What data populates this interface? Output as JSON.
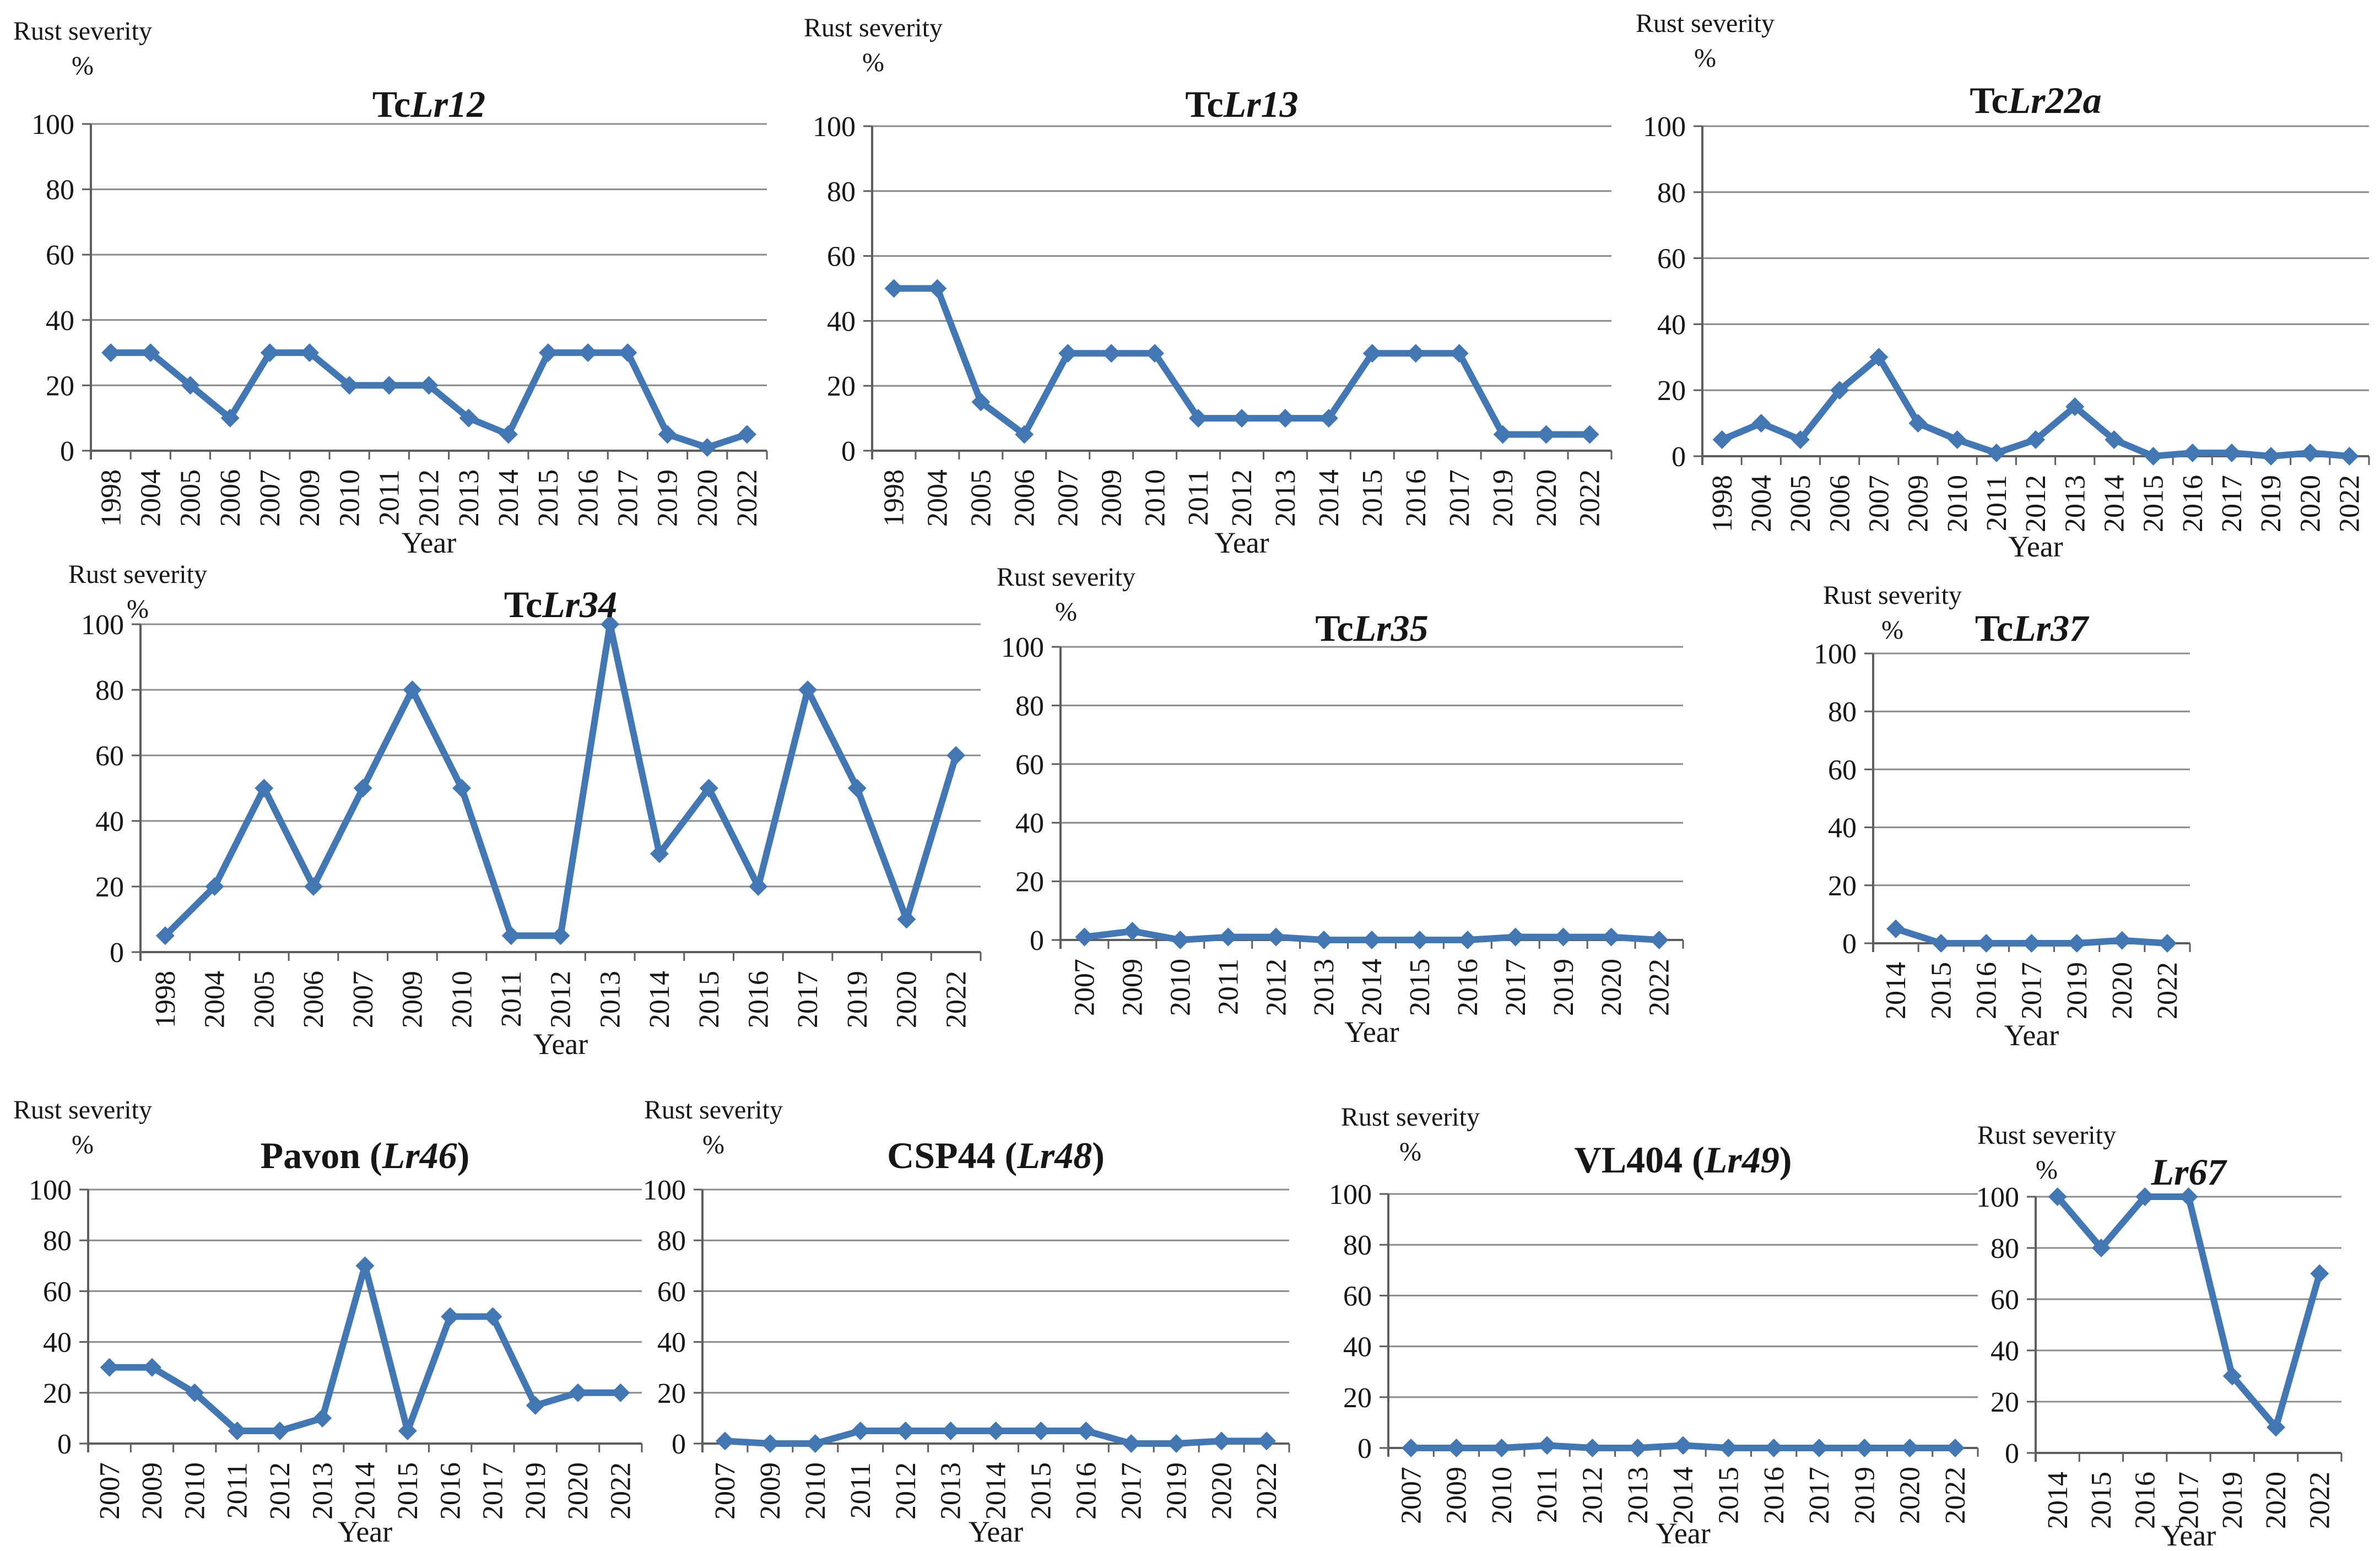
{
  "figure": {
    "background": "#ffffff"
  },
  "style": {
    "series_color": "#4377B4",
    "gridline_color": "#8C8C8C",
    "axis_color": "#5E5E5E",
    "text_color": "#161616"
  },
  "axis": {
    "yticks": [
      "0",
      "20",
      "40",
      "60",
      "80",
      "100"
    ],
    "ymin": 0,
    "ymax": 100
  },
  "chart_data": [
    {
      "id": "tclr12",
      "type": "line",
      "title": {
        "prefix": "Tc",
        "italic": "Lr12",
        "suffix": ""
      },
      "ylabel_line1": "Rust severity",
      "ylabel_line2": "%",
      "xlabel": "Year",
      "ylim": [
        0,
        100
      ],
      "grid": true,
      "legend": false,
      "marker": "diamond",
      "categories": [
        "1998",
        "2004",
        "2005",
        "2006",
        "2007",
        "2009",
        "2010",
        "2011",
        "2012",
        "2013",
        "2014",
        "2015",
        "2016",
        "2017",
        "2019",
        "2020",
        "2022"
      ],
      "values": [
        30,
        30,
        20,
        10,
        30,
        30,
        20,
        20,
        20,
        10,
        5,
        30,
        30,
        30,
        5,
        1,
        5
      ]
    },
    {
      "id": "tclr13",
      "type": "line",
      "title": {
        "prefix": "Tc",
        "italic": "Lr13",
        "suffix": ""
      },
      "ylabel_line1": "Rust severity",
      "ylabel_line2": "%",
      "xlabel": "Year",
      "ylim": [
        0,
        100
      ],
      "grid": true,
      "legend": false,
      "marker": "diamond",
      "categories": [
        "1998",
        "2004",
        "2005",
        "2006",
        "2007",
        "2009",
        "2010",
        "2011",
        "2012",
        "2013",
        "2014",
        "2015",
        "2016",
        "2017",
        "2019",
        "2020",
        "2022"
      ],
      "values": [
        50,
        50,
        15,
        5,
        30,
        30,
        30,
        10,
        10,
        10,
        10,
        30,
        30,
        30,
        5,
        5,
        5
      ]
    },
    {
      "id": "tclr22a",
      "type": "line",
      "title": {
        "prefix": "Tc",
        "italic": "Lr22a",
        "suffix": ""
      },
      "ylabel_line1": "Rust severity",
      "ylabel_line2": "%",
      "xlabel": "Year",
      "ylim": [
        0,
        100
      ],
      "grid": true,
      "legend": false,
      "marker": "diamond",
      "categories": [
        "1998",
        "2004",
        "2005",
        "2006",
        "2007",
        "2009",
        "2010",
        "2011",
        "2012",
        "2013",
        "2014",
        "2015",
        "2016",
        "2017",
        "2019",
        "2020",
        "2022"
      ],
      "values": [
        5,
        10,
        5,
        20,
        30,
        10,
        5,
        1,
        5,
        15,
        5,
        0,
        1,
        1,
        0,
        1,
        0
      ]
    },
    {
      "id": "tclr34",
      "type": "line",
      "title": {
        "prefix": "Tc",
        "italic": "Lr34",
        "suffix": ""
      },
      "ylabel_line1": "Rust severity",
      "ylabel_line2": "%",
      "xlabel": "Year",
      "ylim": [
        0,
        100
      ],
      "grid": true,
      "legend": false,
      "marker": "diamond",
      "categories": [
        "1998",
        "2004",
        "2005",
        "2006",
        "2007",
        "2009",
        "2010",
        "2011",
        "2012",
        "2013",
        "2014",
        "2015",
        "2016",
        "2017",
        "2019",
        "2020",
        "2022"
      ],
      "values": [
        5,
        20,
        50,
        20,
        50,
        80,
        50,
        5,
        5,
        100,
        30,
        50,
        20,
        80,
        50,
        10,
        60
      ]
    },
    {
      "id": "tclr35",
      "type": "line",
      "title": {
        "prefix": "Tc",
        "italic": "Lr35",
        "suffix": ""
      },
      "ylabel_line1": "Rust severity",
      "ylabel_line2": "%",
      "xlabel": "Year",
      "ylim": [
        0,
        100
      ],
      "grid": true,
      "legend": false,
      "marker": "diamond",
      "categories": [
        "2007",
        "2009",
        "2010",
        "2011",
        "2012",
        "2013",
        "2014",
        "2015",
        "2016",
        "2017",
        "2019",
        "2020",
        "2022"
      ],
      "values": [
        1,
        3,
        0,
        1,
        1,
        0,
        0,
        0,
        0,
        1,
        1,
        1,
        0
      ]
    },
    {
      "id": "tclr37",
      "type": "line",
      "title": {
        "prefix": "Tc",
        "italic": "Lr37",
        "suffix": ""
      },
      "ylabel_line1": "Rust severity",
      "ylabel_line2": "%",
      "xlabel": "Year",
      "ylim": [
        0,
        100
      ],
      "grid": true,
      "legend": false,
      "marker": "diamond",
      "categories": [
        "2014",
        "2015",
        "2016",
        "2017",
        "2019",
        "2020",
        "2022"
      ],
      "values": [
        5,
        0,
        0,
        0,
        0,
        1,
        0
      ]
    },
    {
      "id": "pavon_lr46",
      "type": "line",
      "title": {
        "prefix": "Pavon (",
        "italic": "Lr46",
        "suffix": ")"
      },
      "ylabel_line1": "Rust severity",
      "ylabel_line2": "%",
      "xlabel": "Year",
      "ylim": [
        0,
        100
      ],
      "grid": true,
      "legend": false,
      "marker": "diamond",
      "categories": [
        "2007",
        "2009",
        "2010",
        "2011",
        "2012",
        "2013",
        "2014",
        "2015",
        "2016",
        "2017",
        "2019",
        "2020",
        "2022"
      ],
      "values": [
        30,
        30,
        20,
        5,
        5,
        10,
        70,
        5,
        50,
        50,
        15,
        20,
        20
      ]
    },
    {
      "id": "csp44_lr48",
      "type": "line",
      "title": {
        "prefix": "CSP44 (",
        "italic": "Lr48",
        "suffix": ")"
      },
      "ylabel_line1": "Rust severity",
      "ylabel_line2": "%",
      "xlabel": "Year",
      "ylim": [
        0,
        100
      ],
      "grid": true,
      "legend": false,
      "marker": "diamond",
      "categories": [
        "2007",
        "2009",
        "2010",
        "2011",
        "2012",
        "2013",
        "2014",
        "2015",
        "2016",
        "2017",
        "2019",
        "2020",
        "2022"
      ],
      "values": [
        1,
        0,
        0,
        5,
        5,
        5,
        5,
        5,
        5,
        0,
        0,
        1,
        1
      ]
    },
    {
      "id": "vl404_lr49",
      "type": "line",
      "title": {
        "prefix": "VL404 (",
        "italic": "Lr49",
        "suffix": ")"
      },
      "ylabel_line1": "Rust severity",
      "ylabel_line2": "%",
      "xlabel": "Year",
      "ylim": [
        0,
        100
      ],
      "grid": true,
      "legend": false,
      "marker": "diamond",
      "categories": [
        "2007",
        "2009",
        "2010",
        "2011",
        "2012",
        "2013",
        "2014",
        "2015",
        "2016",
        "2017",
        "2019",
        "2020",
        "2022"
      ],
      "values": [
        0,
        0,
        0,
        1,
        0,
        0,
        1,
        0,
        0,
        0,
        0,
        0,
        0
      ]
    },
    {
      "id": "lr67",
      "type": "line",
      "title": {
        "prefix": "",
        "italic": "Lr67",
        "suffix": ""
      },
      "ylabel_line1": "Rust severity",
      "ylabel_line2": "%",
      "xlabel": "Year",
      "ylim": [
        0,
        100
      ],
      "grid": true,
      "legend": false,
      "marker": "diamond",
      "categories": [
        "2014",
        "2015",
        "2016",
        "2017",
        "2019",
        "2020",
        "2022"
      ],
      "values": [
        100,
        80,
        100,
        100,
        30,
        10,
        70
      ]
    }
  ]
}
